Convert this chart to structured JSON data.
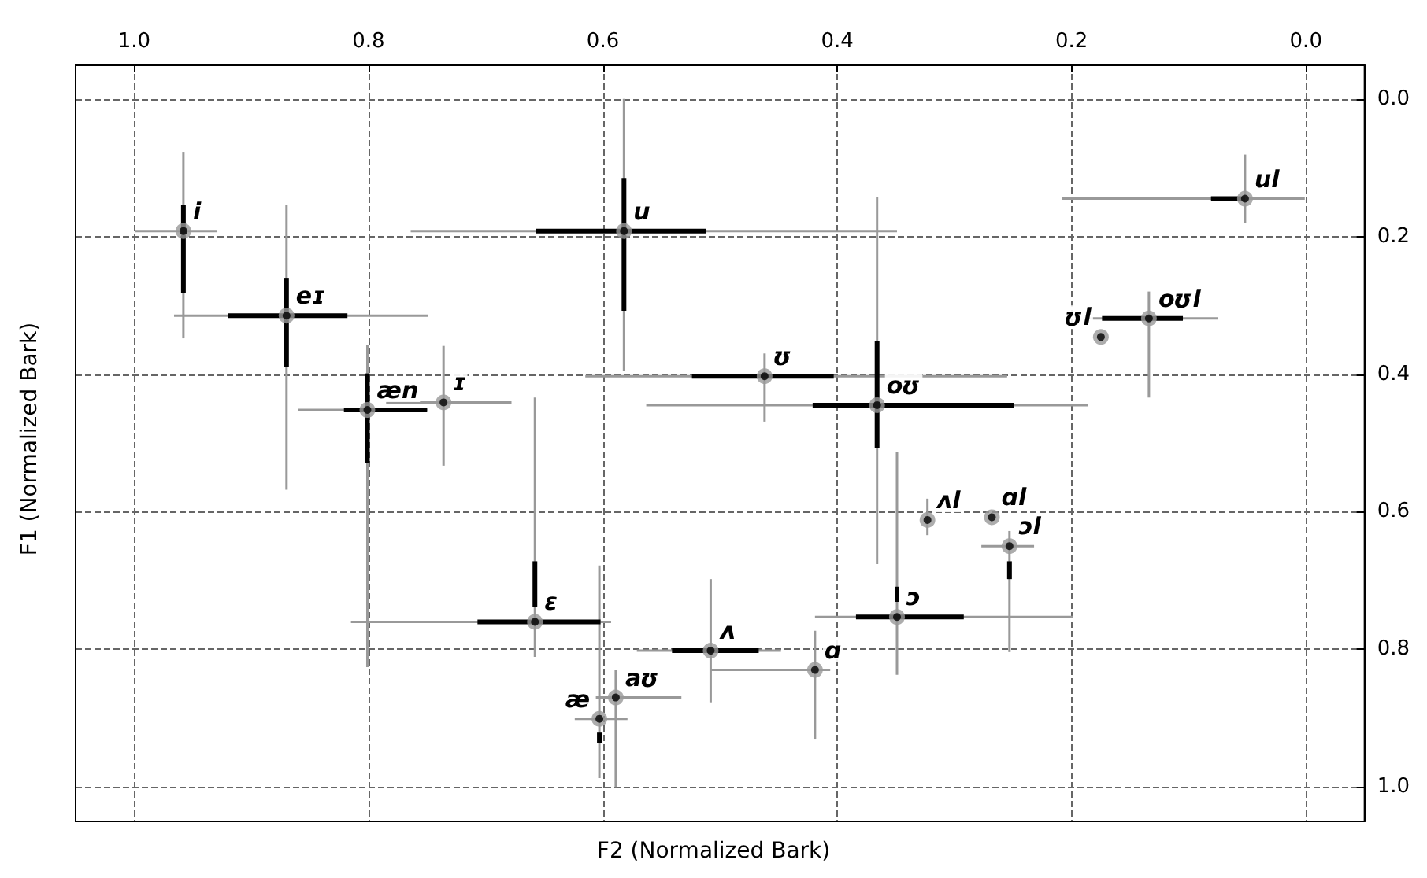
{
  "chart_data": {
    "type": "scatter",
    "xlabel": "F2 (Normalized Bark)",
    "ylabel": "F1 (Normalized Bark)",
    "x": [
      0.958,
      0.87,
      0.801,
      0.736,
      0.582,
      0.462,
      0.366,
      0.052,
      0.134,
      0.175,
      0.658,
      0.589,
      0.603,
      0.508,
      0.419,
      0.349,
      0.323,
      0.268,
      0.253
    ],
    "series": [
      {
        "color": "#999999",
        "values": [
          0.192,
          0.315,
          0.452,
          0.441,
          0.192,
          0.403,
          0.445,
          0.145,
          0.319,
          0.346,
          0.76,
          0.87,
          0.901,
          0.802,
          0.83,
          0.753,
          0.612,
          0.608,
          0.65
        ],
        "xerrors": [
          [
            0.929,
            0.999
          ],
          [
            0.749,
            0.966
          ],
          [
            0.75,
            0.86
          ],
          [
            0.678,
            0.785
          ],
          [
            0.349,
            0.764
          ],
          [
            0.255,
            0.615
          ],
          [
            0.186,
            0.563
          ],
          [
            0.001,
            0.208
          ],
          [
            0.075,
            0.19
          ],
          null,
          [
            0.593,
            0.815
          ],
          [
            0.533,
            0.606
          ],
          [
            0.579,
            0.624
          ],
          [
            0.448,
            0.571
          ],
          [
            0.406,
            0.508
          ],
          [
            0.199,
            0.419
          ],
          null,
          null,
          [
            0.232,
            0.277
          ]
        ],
        "errors": [
          [
            0.077,
            0.348
          ],
          [
            0.154,
            0.568
          ],
          [
            0.357,
            0.826
          ],
          [
            0.359,
            0.533
          ],
          [
            0.0,
            0.396
          ],
          [
            0.37,
            0.469
          ],
          [
            0.143,
            0.676
          ],
          [
            0.081,
            0.181
          ],
          [
            0.28,
            0.434
          ],
          null,
          [
            0.434,
            0.811
          ],
          [
            0.83,
            1.0
          ],
          [
            0.678,
            0.987
          ],
          [
            0.698,
            0.877
          ],
          [
            0.773,
            0.93
          ],
          [
            0.513,
            0.837
          ],
          [
            0.581,
            0.634
          ],
          null,
          [
            0.628,
            0.804
          ]
        ]
      },
      {
        "color": "#000000",
        "values": [
          0.192,
          0.315,
          0.452,
          0.441,
          0.192,
          0.403,
          0.445,
          0.145,
          0.319,
          0.346,
          0.76,
          0.87,
          0.901,
          0.802,
          0.83,
          0.753,
          0.612,
          0.608,
          0.65
        ],
        "xerrors": [
          null,
          [
            0.818,
            0.92
          ],
          [
            0.75,
            0.821
          ],
          null,
          [
            0.512,
            0.657
          ],
          [
            0.403,
            0.524
          ],
          [
            0.249,
            0.421
          ],
          [
            0.052,
            0.081
          ],
          [
            0.105,
            0.174
          ],
          null,
          [
            0.602,
            0.707
          ],
          null,
          null,
          [
            0.467,
            0.541
          ],
          null,
          [
            0.292,
            0.384
          ],
          null,
          null,
          null
        ],
        "errors": [
          [
            0.154,
            0.282
          ],
          [
            0.26,
            0.39
          ],
          [
            0.399,
            0.529
          ],
          null,
          [
            0.115,
            0.308
          ],
          null,
          [
            0.352,
            0.507
          ],
          null,
          null,
          null,
          [
            0.672,
            0.738
          ],
          null,
          [
            0.921,
            0.936
          ],
          null,
          null,
          [
            0.709,
            0.731
          ],
          null,
          null,
          [
            0.672,
            0.698
          ]
        ]
      }
    ],
    "annotations": [
      {
        "text": "i",
        "x": 0.958,
        "y": 0.192
      },
      {
        "text": "eɪ",
        "x": 0.87,
        "y": 0.315
      },
      {
        "text": "æn",
        "x": 0.801,
        "y": 0.452
      },
      {
        "text": "ɪ",
        "x": 0.736,
        "y": 0.441
      },
      {
        "text": "u",
        "x": 0.582,
        "y": 0.192
      },
      {
        "text": "ʊ",
        "x": 0.462,
        "y": 0.403
      },
      {
        "text": "oʊ",
        "x": 0.366,
        "y": 0.445
      },
      {
        "text": "ul",
        "x": 0.052,
        "y": 0.145
      },
      {
        "text": "oʊl",
        "x": 0.134,
        "y": 0.319
      },
      {
        "text": "ʊl",
        "x": 0.175,
        "y": 0.346
      },
      {
        "text": "ɛ",
        "x": 0.658,
        "y": 0.76
      },
      {
        "text": "aʊ",
        "x": 0.589,
        "y": 0.87
      },
      {
        "text": "æ",
        "x": 0.603,
        "y": 0.901
      },
      {
        "text": "ʌ",
        "x": 0.508,
        "y": 0.802
      },
      {
        "text": "ɑ",
        "x": 0.419,
        "y": 0.83
      },
      {
        "text": "ɔ",
        "x": 0.349,
        "y": 0.753
      },
      {
        "text": "ʌl",
        "x": 0.323,
        "y": 0.612
      },
      {
        "text": "ɑl",
        "x": 0.268,
        "y": 0.608
      },
      {
        "text": "ɔl",
        "x": 0.253,
        "y": 0.65
      }
    ],
    "xlim": [
      1.05,
      -0.05
    ],
    "xticks": [
      {
        "value": 1,
        "label": "1.0"
      },
      0.8,
      0.6,
      0.4,
      0.2,
      {
        "value": 0,
        "label": "0.0"
      }
    ],
    "ylim": [
      1.05,
      -0.05
    ],
    "yticks": [
      {
        "value": 0,
        "label": "0.0"
      },
      0.2,
      0.4,
      0.6,
      0.8,
      {
        "value": 1,
        "label": "1.0"
      }
    ],
    "grid": true,
    "marker": "circle"
  }
}
